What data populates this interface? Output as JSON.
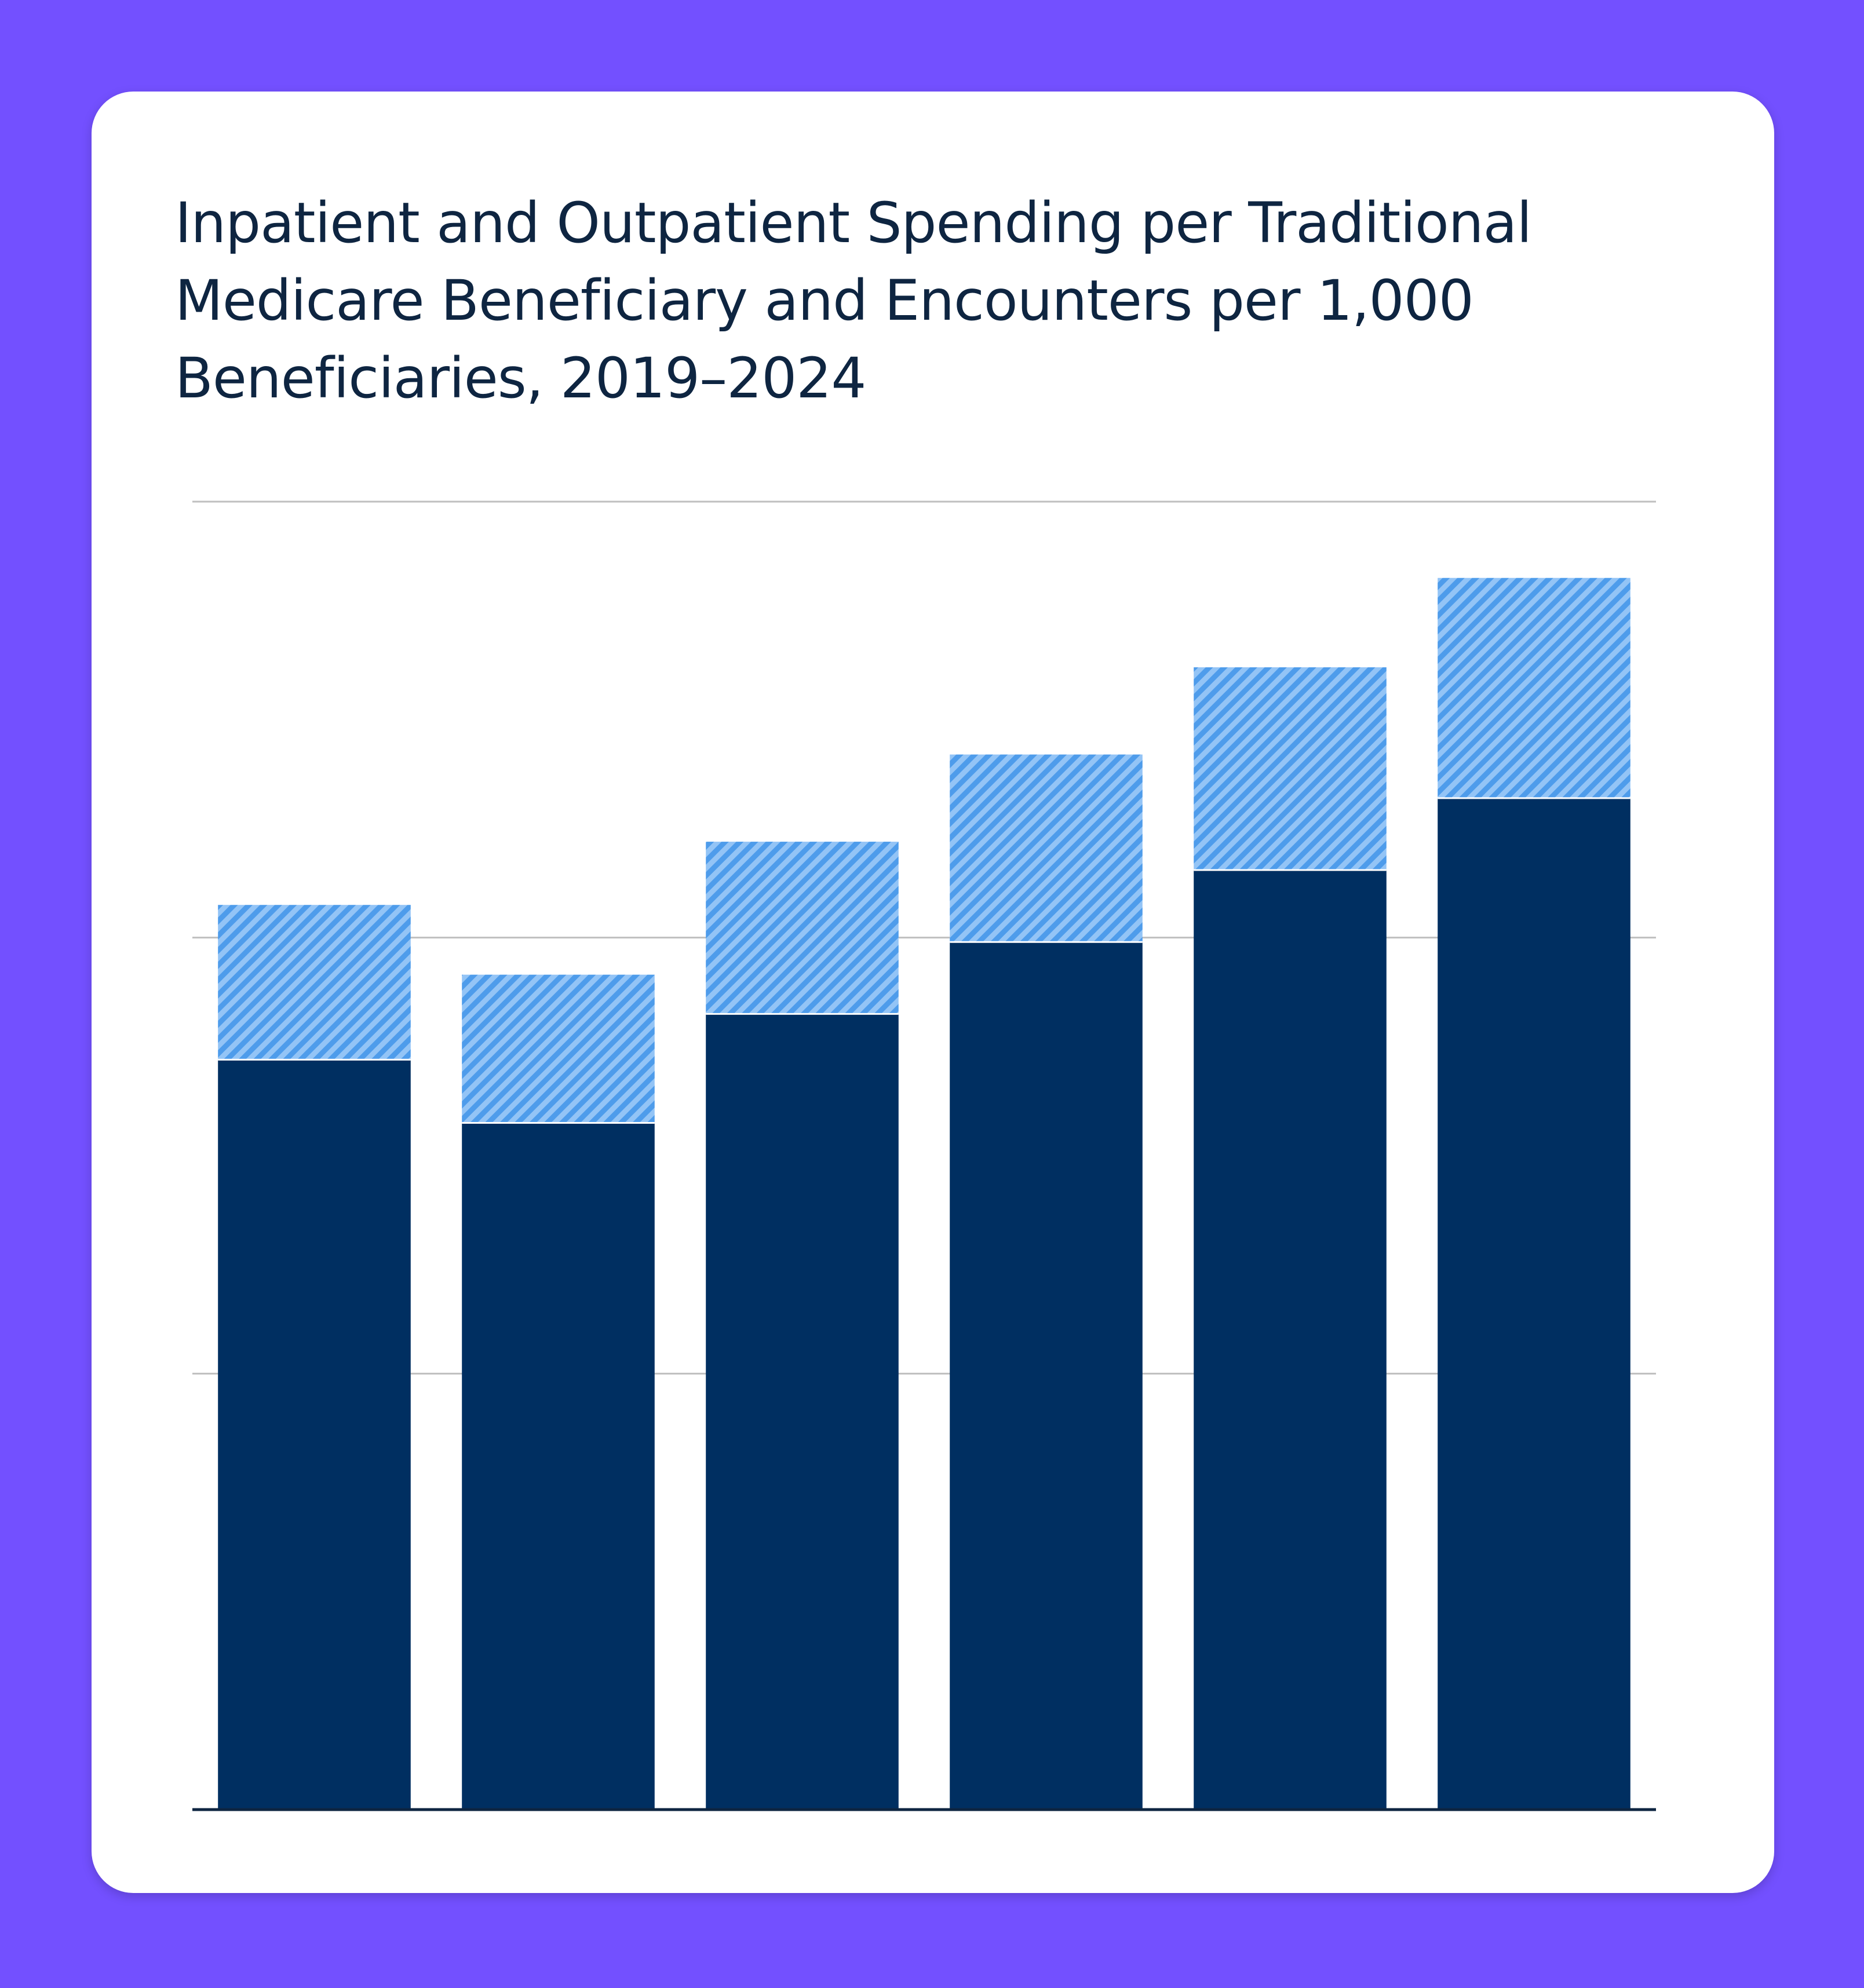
{
  "chart_data": {
    "type": "bar",
    "stacked": true,
    "title": "Inpatient and Outpatient Spending per Traditional Medicare Beneficiary and Encounters per 1,000 Beneficiaries, 2019–2024",
    "categories": [
      "",
      "",
      "",
      "",
      "",
      ""
    ],
    "series": [
      {
        "values": [
          1720,
          1575,
          1825,
          1990,
          2155,
          2320
        ],
        "color": "#002F61"
      },
      {
        "values": [
          355,
          340,
          395,
          430,
          465,
          505
        ],
        "color": "#5BA6EF",
        "pattern": "diagonal-hatch"
      }
    ],
    "ylim": [
      0,
      3000
    ],
    "gridlines": [
      0,
      1000,
      2000,
      3000
    ],
    "grid": true,
    "legend": false,
    "colors": {
      "background": "#7350FF",
      "card": "#FFFFFF",
      "title": "#0E2541",
      "gridline": "#BFBFBF",
      "baseline": "#0E2541"
    }
  }
}
